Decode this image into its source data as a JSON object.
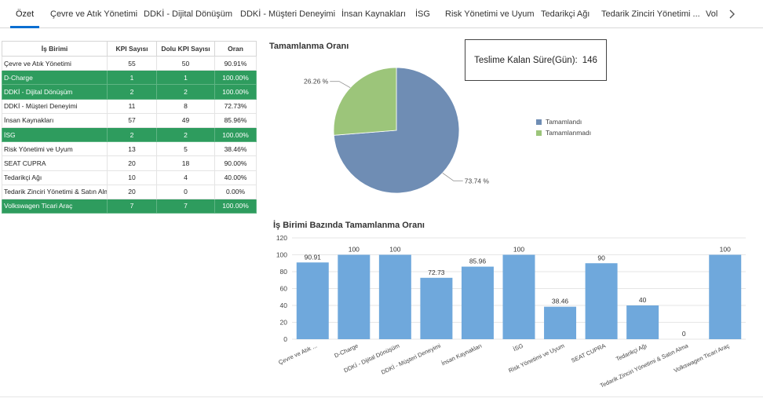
{
  "tabs": [
    {
      "label": "Özet",
      "active": true
    },
    {
      "label": "Çevre ve Atık Yönetimi"
    },
    {
      "label": "DDKİ - Dijital Dönüşüm"
    },
    {
      "label": "DDKİ - Müşteri Deneyimi"
    },
    {
      "label": "İnsan Kaynakları"
    },
    {
      "label": "İSG"
    },
    {
      "label": "Risk Yönetimi ve Uyum"
    },
    {
      "label": "Tedarikçi Ağı"
    },
    {
      "label": "Tedarik Zinciri Yönetimi ..."
    },
    {
      "label": "Vol"
    }
  ],
  "table": {
    "headers": [
      "İş Birimi",
      "KPI Sayısı",
      "Dolu KPI Sayısı",
      "Oran"
    ],
    "rows": [
      {
        "name": "Çevre ve Atık Yönetimi",
        "kpi": "55",
        "dolu": "50",
        "oran": "90.91%",
        "done": false
      },
      {
        "name": "D-Charge",
        "kpi": "1",
        "dolu": "1",
        "oran": "100.00%",
        "done": true
      },
      {
        "name": "DDKİ - Dijital Dönüşüm",
        "kpi": "2",
        "dolu": "2",
        "oran": "100.00%",
        "done": true
      },
      {
        "name": "DDKİ - Müşteri Deneyimi",
        "kpi": "11",
        "dolu": "8",
        "oran": "72.73%",
        "done": false
      },
      {
        "name": "İnsan Kaynakları",
        "kpi": "57",
        "dolu": "49",
        "oran": "85.96%",
        "done": false
      },
      {
        "name": "İSG",
        "kpi": "2",
        "dolu": "2",
        "oran": "100.00%",
        "done": true
      },
      {
        "name": "Risk Yönetimi ve Uyum",
        "kpi": "13",
        "dolu": "5",
        "oran": "38.46%",
        "done": false
      },
      {
        "name": "SEAT CUPRA",
        "kpi": "20",
        "dolu": "18",
        "oran": "90.00%",
        "done": false
      },
      {
        "name": "Tedarikçi Ağı",
        "kpi": "10",
        "dolu": "4",
        "oran": "40.00%",
        "done": false
      },
      {
        "name": "Tedarik Zinciri Yönetimi & Satın Alma",
        "kpi": "20",
        "dolu": "0",
        "oran": "0.00%",
        "done": false
      },
      {
        "name": "Volkswagen Ticari Araç",
        "kpi": "7",
        "dolu": "7",
        "oran": "100.00%",
        "done": true
      }
    ]
  },
  "kalan": {
    "label": "Teslime Kalan Süre(Gün):",
    "value": "146"
  },
  "colors": {
    "accent": "#0a6ed1",
    "done_row": "#2e9c5e",
    "pie_done": "#6f8db4",
    "pie_not": "#9cc57a",
    "bar": "#6fa8dc"
  },
  "chart_data": [
    {
      "type": "pie",
      "title": "Tamamlanma Oranı",
      "slices": [
        {
          "label": "Tamamlandı",
          "value": 73.74,
          "display": "73.74 %",
          "color": "#6f8db4"
        },
        {
          "label": "Tamamlanmadı",
          "value": 26.26,
          "display": "26.26 %",
          "color": "#9cc57a"
        }
      ],
      "legend": "right"
    },
    {
      "type": "bar",
      "title": "İş Birimi Bazında Tamamlanma Oranı",
      "categories": [
        "Çevre ve Atık ...",
        "D-Charge",
        "DDKİ - Dijital Dönüşüm",
        "DDKİ - Müşteri Deneyimi",
        "İnsan Kaynakları",
        "İSG",
        "Risk Yönetimi ve Uyum",
        "SEAT CUPRA",
        "Tedarikçi Ağı",
        "Tedarik Zinciri Yönetimi & Satın Alma",
        "Volkswagen Ticari Araç"
      ],
      "values": [
        90.91,
        100,
        100,
        72.73,
        85.96,
        100,
        38.46,
        90,
        40,
        0,
        100
      ],
      "labels": [
        "90.91",
        "100",
        "100",
        "72.73",
        "85.96",
        "100",
        "38.46",
        "90",
        "40",
        "0",
        "100"
      ],
      "yticks": [
        0,
        20,
        40,
        60,
        80,
        100,
        120
      ],
      "ylim": [
        0,
        120
      ],
      "grid": true
    }
  ]
}
